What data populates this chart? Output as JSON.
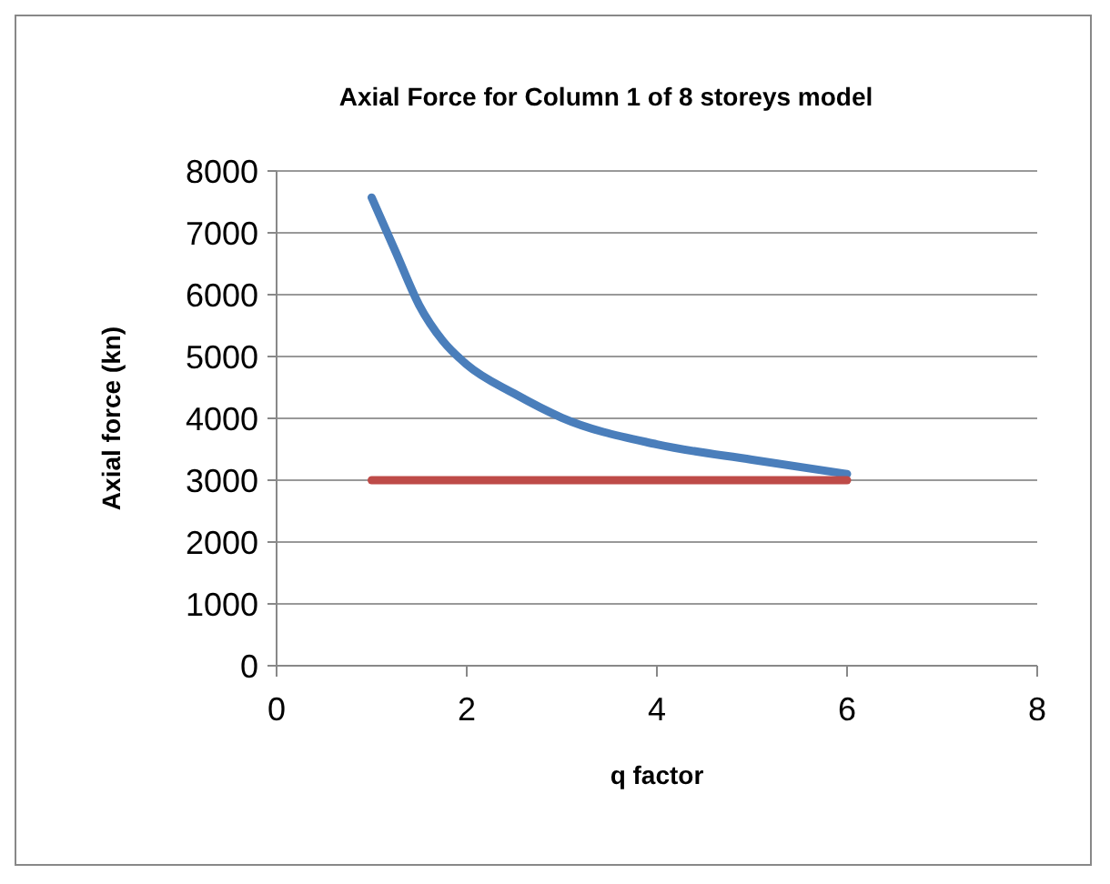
{
  "chart_data": {
    "type": "line",
    "title": "Axial Force for Column 1 of 8 storeys model",
    "xlabel": "q factor",
    "ylabel": "Axial force (kn)",
    "xlim": [
      0,
      8
    ],
    "xticks": [
      0,
      2,
      4,
      6,
      8
    ],
    "ylim": [
      0,
      8000
    ],
    "yticks": [
      0,
      1000,
      2000,
      3000,
      4000,
      5000,
      6000,
      7000,
      8000
    ],
    "grid": "y",
    "marker": "none",
    "line_style": "solid",
    "series": [
      {
        "color": "#4a7ebb",
        "x": [
          1,
          1.25,
          1.5,
          1.75,
          2,
          2.5,
          3,
          4,
          5,
          6
        ],
        "values": [
          7570,
          6700,
          5830,
          5250,
          4870,
          4400,
          4010,
          3580,
          3330,
          3100
        ]
      },
      {
        "color": "#be4b48",
        "x": [
          1,
          6
        ],
        "values": [
          3000,
          3000
        ]
      }
    ]
  }
}
